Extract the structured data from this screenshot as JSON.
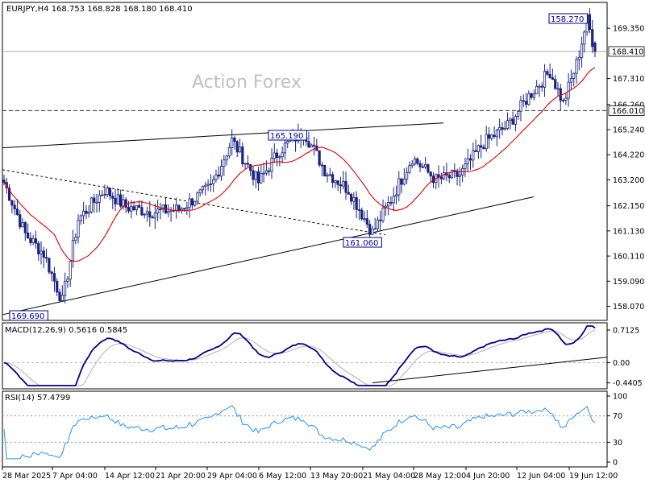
{
  "header": {
    "symbol_line": "EURJPY,H4  168.753 168.828 168.180 168.410"
  },
  "watermark": "Action Forex",
  "chart_data": [
    {
      "type": "candlestick",
      "title": "EURJPY,H4",
      "ohlc_display": {
        "open": 168.753,
        "high": 168.828,
        "low": 168.18,
        "close": 168.41
      },
      "ylim": [
        157.5,
        170.4
      ],
      "yticks": [
        "169.350",
        "167.310",
        "166.260",
        "165.240",
        "164.220",
        "163.200",
        "162.150",
        "161.130",
        "160.110",
        "159.090",
        "158.070"
      ],
      "xticks": [
        "28 Mar 2025",
        "7 Apr 04:00",
        "14 Apr 12:00",
        "21 Apr 20:00",
        "29 Apr 04:00",
        "6 May 12:00",
        "13 May 20:00",
        "21 May 04:00",
        "28 May 12:00",
        "4 Jun 20:00",
        "12 Jun 04:00",
        "19 Jun 12:00"
      ],
      "price_labels": {
        "last": "168.410",
        "level": "166.010"
      },
      "annotations": [
        "169.690",
        "165.190",
        "161.060",
        "158.270"
      ],
      "key_points": [
        {
          "label": "158.270",
          "value": 158.27,
          "kind": "low"
        },
        {
          "label": "165.190",
          "value": 165.19,
          "kind": "high"
        },
        {
          "label": "161.060",
          "value": 161.06,
          "kind": "low"
        },
        {
          "label": "169.690",
          "value": 169.69,
          "kind": "high"
        }
      ],
      "horizontal_lines": [
        {
          "value": 168.41,
          "style": "solid"
        },
        {
          "value": 166.01,
          "style": "dashed"
        }
      ],
      "moving_average": {
        "color": "#dd0000"
      },
      "candle_color": "#1a237e",
      "grid": false
    },
    {
      "type": "line",
      "title": "MACD(12,26,9) 0.5616 0.5845",
      "values_display": {
        "macd": 0.5616,
        "signal": 0.5845
      },
      "ylim": [
        -0.5,
        0.8
      ],
      "yticks": [
        "0.7125",
        "0.00",
        "-0.4405"
      ],
      "series_colors": {
        "macd": "#00008b",
        "signal": "#b0b0b0"
      }
    },
    {
      "type": "line",
      "title": "RSI(14) 57.4799",
      "value_display": 57.4799,
      "ylim": [
        0,
        100
      ],
      "yticks": [
        "100",
        "70",
        "30",
        "0"
      ],
      "levels": [
        70,
        30
      ],
      "series_color": "#1e90ff"
    }
  ],
  "colors": {
    "axis": "#000000",
    "label_box_bg": "#ffffff",
    "label_box_border": "#00008b",
    "watermark": "#c0c0c0"
  }
}
